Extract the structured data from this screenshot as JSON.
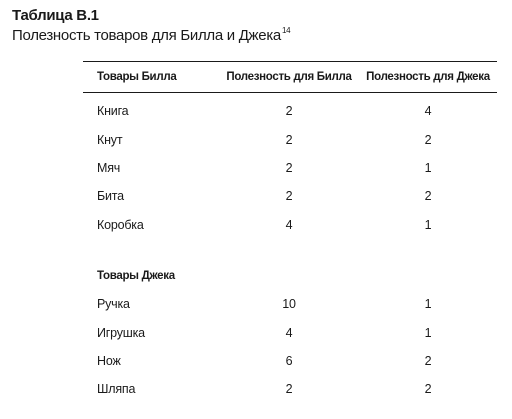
{
  "caption": {
    "label": "Таблица B.1",
    "title": "Полезность товаров для Билла и Джека",
    "footnote": "14"
  },
  "table": {
    "headers": [
      "Товары Билла",
      "Полезность для Билла",
      "Полезность для Джека"
    ],
    "bill_rows": [
      {
        "item": "Книга",
        "bill": "2",
        "jack": "4"
      },
      {
        "item": "Кнут",
        "bill": "2",
        "jack": "2"
      },
      {
        "item": "Мяч",
        "bill": "2",
        "jack": "1"
      },
      {
        "item": "Бита",
        "bill": "2",
        "jack": "2"
      },
      {
        "item": "Коробка",
        "bill": "4",
        "jack": "1"
      }
    ],
    "jack_section_title": "Товары Джека",
    "jack_rows": [
      {
        "item": "Ручка",
        "bill": "10",
        "jack": "1"
      },
      {
        "item": "Игрушка",
        "bill": "4",
        "jack": "1"
      },
      {
        "item": "Нож",
        "bill": "6",
        "jack": "2"
      },
      {
        "item": "Шляпа",
        "bill": "2",
        "jack": "2"
      }
    ]
  }
}
